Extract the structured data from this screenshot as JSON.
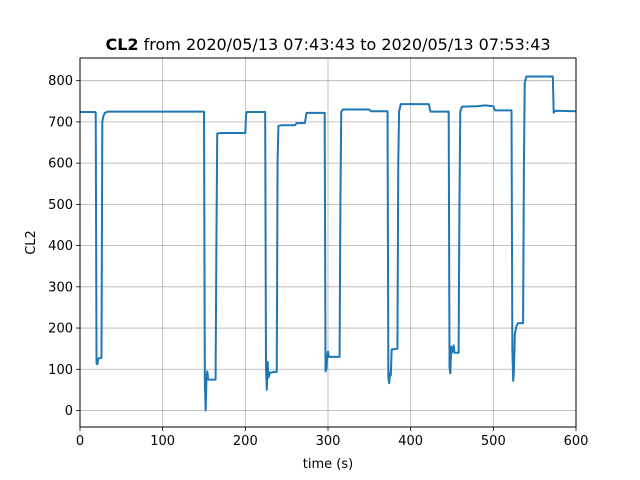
{
  "chart_data": {
    "type": "line",
    "title_bold": "CL2",
    "title_rest": " from 2020/05/13 07:43:43 to 2020/05/13 07:53:43",
    "xlabel": "time (s)",
    "ylabel": "CL2",
    "xlim": [
      0,
      600
    ],
    "ylim": [
      -40,
      855
    ],
    "xticks": [
      0,
      100,
      200,
      300,
      400,
      500,
      600
    ],
    "yticks": [
      0,
      100,
      200,
      300,
      400,
      500,
      600,
      700,
      800
    ],
    "grid": true,
    "line_color": "#1f77b4",
    "series": [
      {
        "values": [
          [
            0,
            724
          ],
          [
            18,
            724
          ],
          [
            19,
            723
          ],
          [
            20,
            115
          ],
          [
            21,
            112
          ],
          [
            22,
            126
          ],
          [
            26,
            128
          ],
          [
            27,
            700
          ],
          [
            28,
            712
          ],
          [
            30,
            722
          ],
          [
            34,
            725
          ],
          [
            150,
            725
          ],
          [
            151,
            70
          ],
          [
            152,
            0
          ],
          [
            153,
            80
          ],
          [
            154,
            95
          ],
          [
            155,
            75
          ],
          [
            164,
            75
          ],
          [
            165,
            400
          ],
          [
            166,
            672
          ],
          [
            170,
            673
          ],
          [
            200,
            673
          ],
          [
            201,
            720
          ],
          [
            202,
            724
          ],
          [
            224,
            724
          ],
          [
            225,
            100
          ],
          [
            226,
            50
          ],
          [
            227,
            118
          ],
          [
            228,
            80
          ],
          [
            230,
            92
          ],
          [
            238,
            94
          ],
          [
            239,
            600
          ],
          [
            240,
            690
          ],
          [
            244,
            692
          ],
          [
            260,
            692
          ],
          [
            262,
            697
          ],
          [
            272,
            697
          ],
          [
            274,
            722
          ],
          [
            296,
            722
          ],
          [
            297,
            95
          ],
          [
            298,
            100
          ],
          [
            299,
            130
          ],
          [
            300,
            143
          ],
          [
            301,
            130
          ],
          [
            314,
            130
          ],
          [
            315,
            500
          ],
          [
            316,
            725
          ],
          [
            318,
            730
          ],
          [
            350,
            730
          ],
          [
            352,
            726
          ],
          [
            372,
            726
          ],
          [
            373,
            80
          ],
          [
            374,
            66
          ],
          [
            375,
            90
          ],
          [
            376,
            85
          ],
          [
            377,
            148
          ],
          [
            384,
            150
          ],
          [
            385,
            600
          ],
          [
            386,
            725
          ],
          [
            388,
            743
          ],
          [
            422,
            743
          ],
          [
            424,
            725
          ],
          [
            446,
            725
          ],
          [
            447,
            105
          ],
          [
            448,
            90
          ],
          [
            449,
            155
          ],
          [
            450,
            140
          ],
          [
            452,
            158
          ],
          [
            453,
            140
          ],
          [
            458,
            140
          ],
          [
            459,
            500
          ],
          [
            460,
            725
          ],
          [
            462,
            737
          ],
          [
            480,
            738
          ],
          [
            490,
            740
          ],
          [
            500,
            738
          ],
          [
            502,
            728
          ],
          [
            522,
            728
          ],
          [
            523,
            150
          ],
          [
            524,
            72
          ],
          [
            525,
            100
          ],
          [
            526,
            185
          ],
          [
            528,
            205
          ],
          [
            530,
            212
          ],
          [
            536,
            212
          ],
          [
            537,
            600
          ],
          [
            538,
            795
          ],
          [
            540,
            810
          ],
          [
            572,
            810
          ],
          [
            573,
            722
          ],
          [
            574,
            727
          ],
          [
            600,
            726
          ]
        ]
      }
    ]
  }
}
